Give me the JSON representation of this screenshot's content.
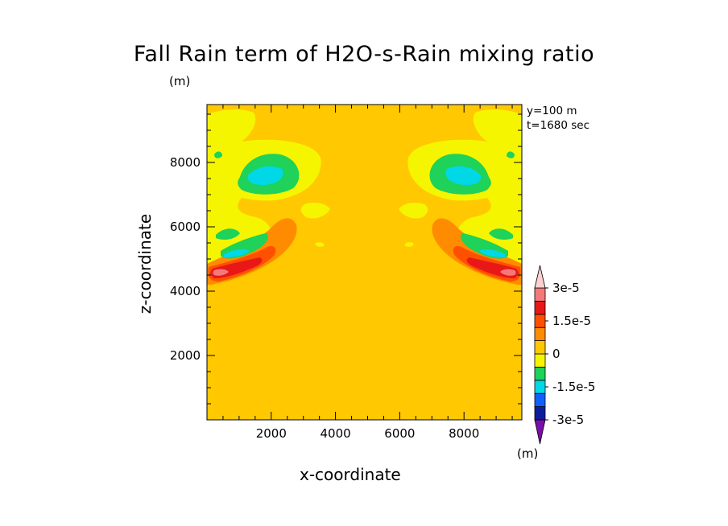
{
  "chart_data": {
    "type": "heatmap",
    "title": "Fall Rain term of H2O-s-Rain mixing ratio",
    "title_unit": "(m)",
    "annotations": [
      "y=100 m",
      "t=1680 sec"
    ],
    "xlabel": "x-coordinate",
    "ylabel": "z-coordinate",
    "xlim": [
      0,
      9800
    ],
    "ylim": [
      0,
      9800
    ],
    "xticks": [
      2000,
      4000,
      6000,
      8000
    ],
    "yticks": [
      2000,
      4000,
      6000,
      8000
    ],
    "xtick_labels": [
      "2000",
      "4000",
      "6000",
      "8000"
    ],
    "ytick_labels": [
      "2000",
      "4000",
      "6000",
      "8000"
    ],
    "background_level": 0,
    "colorbar": {
      "unit": "(m)",
      "levels": [
        -3e-05,
        -2.25e-05,
        -1.5e-05,
        -7.5e-06,
        0,
        7.5e-06,
        1.5e-05,
        2.25e-05,
        3e-05
      ],
      "bin_colors": [
        "#7a0ea8",
        "#0a1e9c",
        "#1060ff",
        "#00d8e8",
        "#1ed25a",
        "#f5f500",
        "#ffc800",
        "#ff8c00",
        "#ff5000",
        "#e81818",
        "#f47a7a",
        "#ffd0d0"
      ],
      "labels": [
        {
          "text": "3e-5",
          "value": 3e-05
        },
        {
          "text": "1.5e-5",
          "value": 1.5e-05
        },
        {
          "text": "0",
          "value": 0
        },
        {
          "text": "-1.5e-5",
          "value": -1.5e-05
        },
        {
          "text": "-3e-5",
          "value": -3e-05
        }
      ]
    },
    "regions": [
      {
        "side": "left",
        "feature": "upper negative cell",
        "x": [
          700,
          2800
        ],
        "z": [
          7500,
          9200
        ],
        "min": -1.5e-05
      },
      {
        "side": "left",
        "feature": "negative band",
        "x": [
          400,
          2100
        ],
        "z": [
          5000,
          6000
        ],
        "min": -1e-05
      },
      {
        "side": "left",
        "feature": "positive maximum",
        "x": [
          200,
          2000
        ],
        "z": [
          4400,
          5100
        ],
        "max": 2.25e-05
      },
      {
        "side": "right",
        "feature": "upper negative cell",
        "x": [
          7000,
          9100
        ],
        "z": [
          7500,
          9200
        ],
        "min": -1.5e-05
      },
      {
        "side": "right",
        "feature": "negative band",
        "x": [
          7700,
          9400
        ],
        "z": [
          5000,
          6000
        ],
        "min": -1e-05
      },
      {
        "side": "right",
        "feature": "positive maximum",
        "x": [
          7800,
          9600
        ],
        "z": [
          4400,
          5100
        ],
        "max": 2.25e-05
      }
    ]
  }
}
